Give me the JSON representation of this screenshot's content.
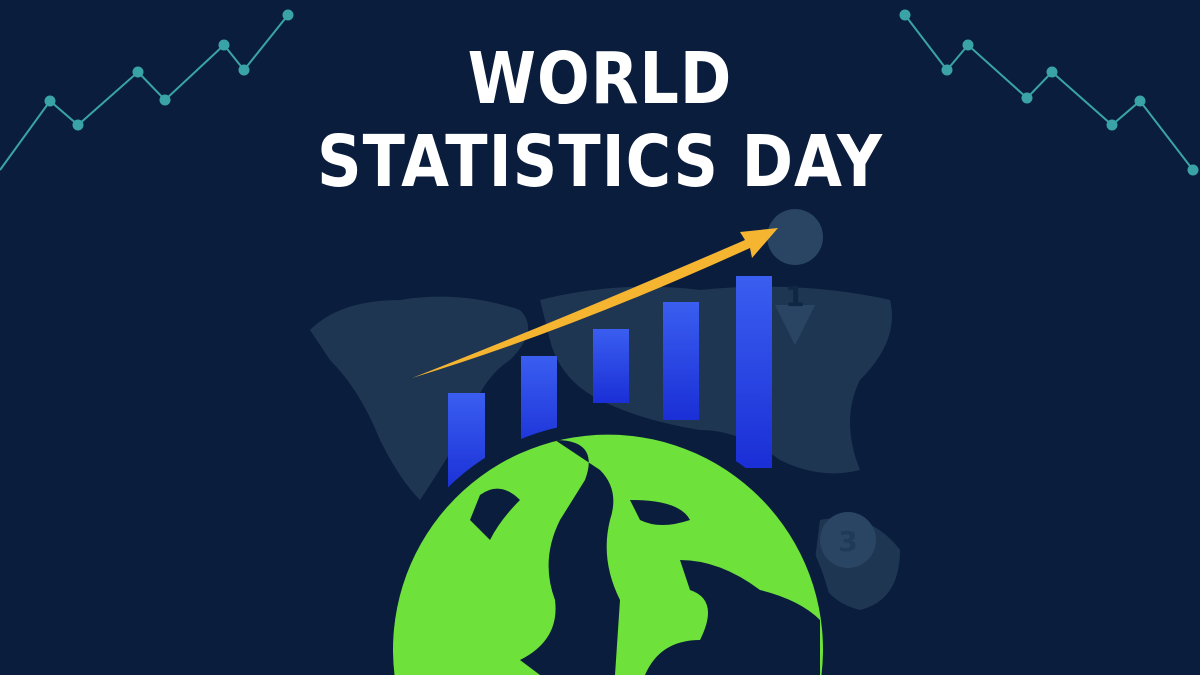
{
  "poster": {
    "title_line1": "WORLD",
    "title_line2": "STATISTICS DAY",
    "pin_labels": [
      "1",
      "3"
    ]
  },
  "colors": {
    "background": "#0a1d3d",
    "title": "#ffffff",
    "trend_lines": "#3aa3a8",
    "bars": "#2f54e0",
    "arrow": "#f5b531",
    "globe": "#6ee23a",
    "map_silhouette": "#1f3652"
  },
  "icons": [
    "line-chart-decoration",
    "bar-chart",
    "trend-arrow",
    "globe",
    "map-pin"
  ]
}
